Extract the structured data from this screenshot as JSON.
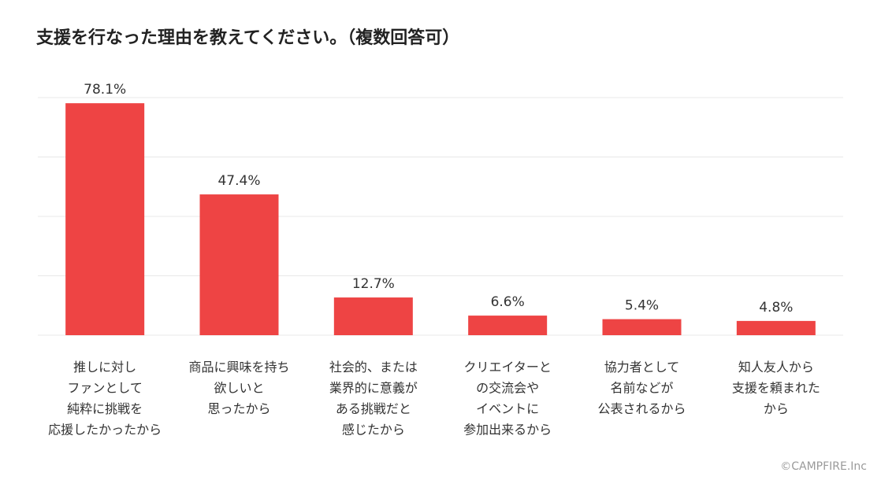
{
  "title": "支援を行なった理由を教えてください。（複数回答可）",
  "credit": "©CAMPFIRE.Inc",
  "colors": {
    "bar": "#ee4444",
    "grid": "#e8e8e8"
  },
  "chart_data": {
    "type": "bar",
    "title": "支援を行なった理由を教えてください。（複数回答可）",
    "categories": [
      [
        "推しに対し",
        "ファンとして",
        "純粋に挑戦を",
        "応援したかったから"
      ],
      [
        "商品に興味を持ち",
        "欲しいと",
        "思ったから"
      ],
      [
        "社会的、または",
        "業界的に意義が",
        "ある挑戦だと",
        "感じたから"
      ],
      [
        "クリエイターと",
        "の交流会や",
        "イベントに",
        "参加出来るから"
      ],
      [
        "協力者として",
        "名前などが",
        "公表されるから"
      ],
      [
        "知人友人から",
        "支援を頼まれた",
        "から"
      ]
    ],
    "values": [
      78.1,
      47.4,
      12.7,
      6.6,
      5.4,
      4.8
    ],
    "value_labels": [
      "78.1%",
      "47.4%",
      "12.7%",
      "6.6%",
      "5.4%",
      "4.8%"
    ],
    "unit": "%",
    "ylim": [
      0,
      80
    ],
    "grid": true,
    "gridlines": [
      20,
      40,
      60,
      80
    ]
  }
}
